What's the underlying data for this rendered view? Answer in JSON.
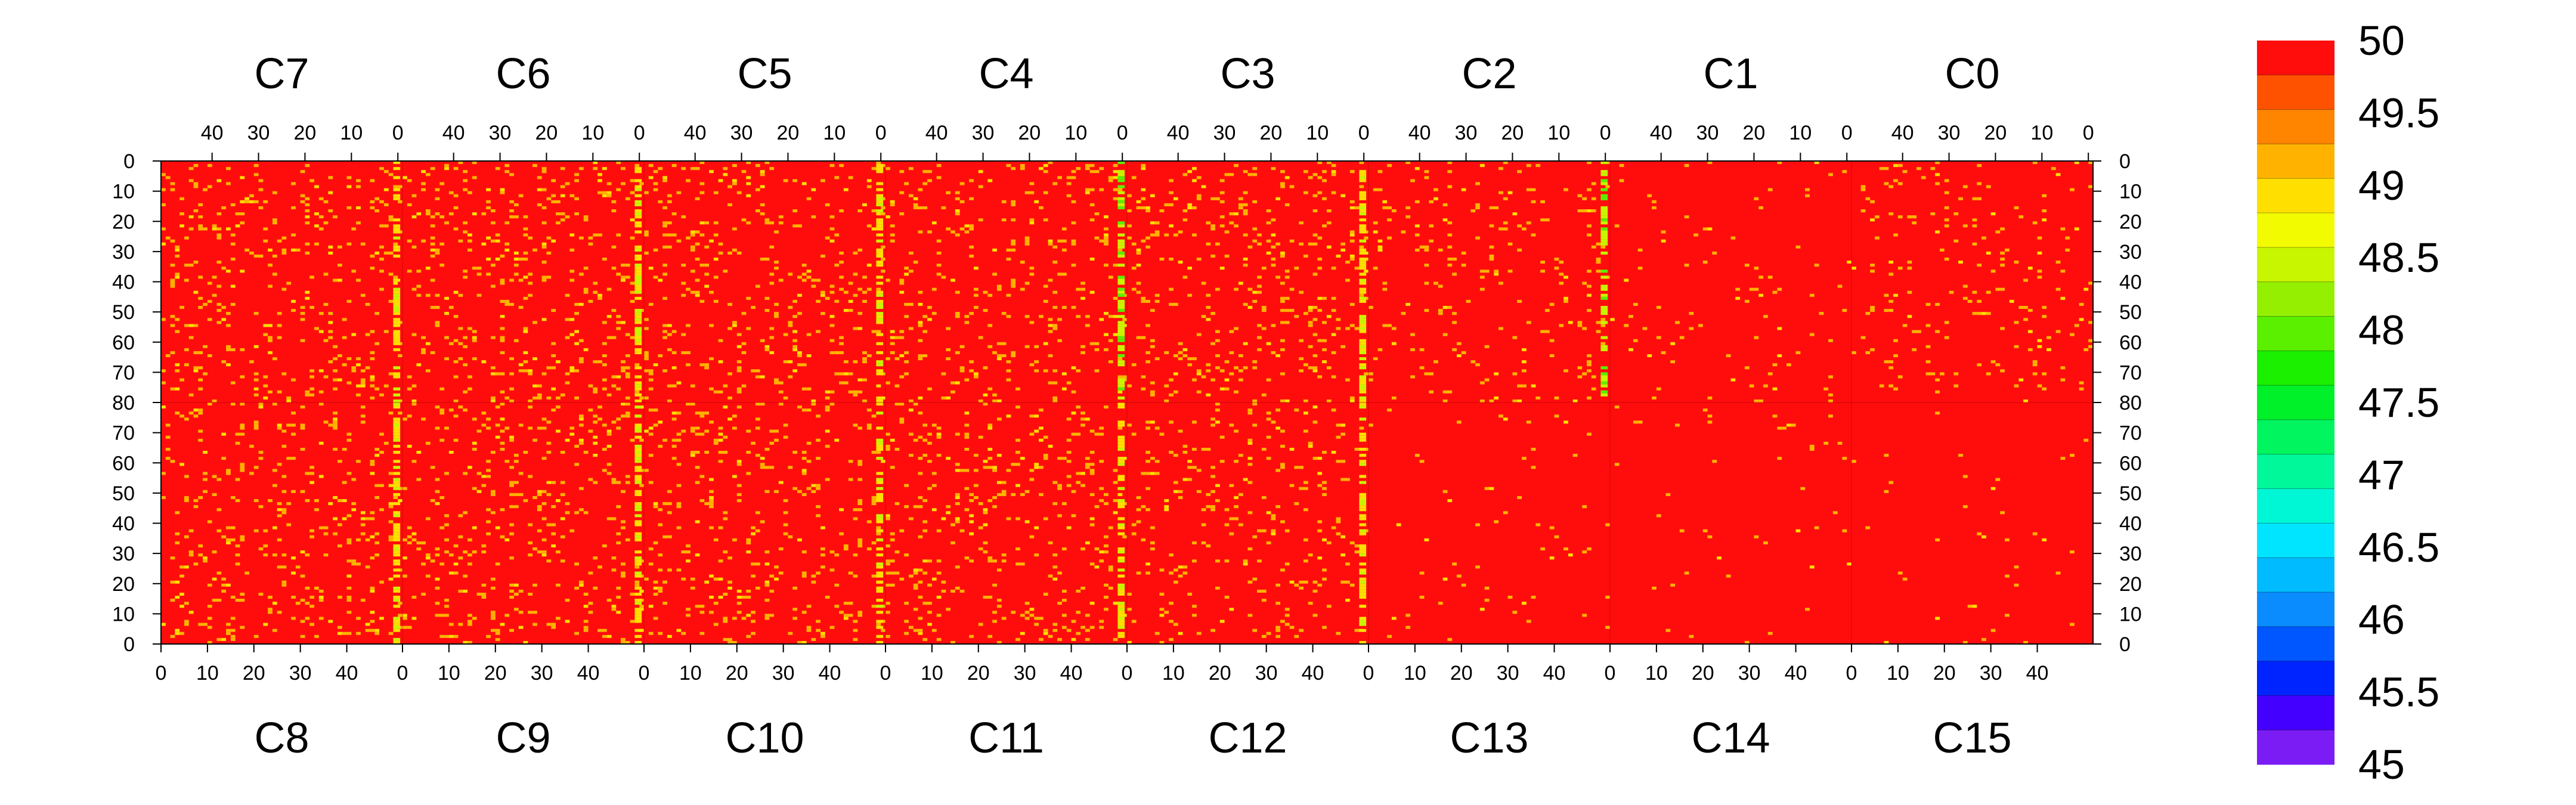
{
  "chart_data": {
    "type": "heatmap",
    "description_units": "cell value",
    "color_scale": {
      "min": 45,
      "max": 50,
      "step": 0.25,
      "tick_labels": [
        "50",
        "49.5",
        "49",
        "48.5",
        "48",
        "47.5",
        "47",
        "46.5",
        "46",
        "45.5",
        "45"
      ],
      "colors": [
        "#7b1cf5",
        "#4400ff",
        "#0024ff",
        "#0057ff",
        "#0a8cff",
        "#00bbff",
        "#00e5ff",
        "#00f7d6",
        "#00f79a",
        "#00f55f",
        "#00f02a",
        "#1af000",
        "#5af000",
        "#94f000",
        "#c8f500",
        "#f2fb00",
        "#ffdf00",
        "#ffb300",
        "#ff8400",
        "#ff5200",
        "#ff0d0d"
      ]
    },
    "background_value": 50,
    "top_chips": [
      "C7",
      "C6",
      "C5",
      "C4",
      "C3",
      "C2",
      "C1",
      "C0"
    ],
    "bottom_chips": [
      "C8",
      "C9",
      "C10",
      "C11",
      "C12",
      "C13",
      "C14",
      "C15"
    ],
    "top_column_ticks": [
      "40",
      "30",
      "20",
      "10",
      "0"
    ],
    "bottom_column_ticks": [
      "0",
      "10",
      "20",
      "30",
      "40"
    ],
    "row_ticks_upper": [
      "0",
      "10",
      "20",
      "30",
      "40",
      "50",
      "60",
      "70",
      "80"
    ],
    "row_ticks_lower": [
      "70",
      "60",
      "50",
      "40",
      "30",
      "20",
      "10",
      "0"
    ],
    "columns_per_chip": 52,
    "rows_per_half": 80,
    "hot_columns": [
      {
        "chip": "C7",
        "col": 1,
        "value": 49.0
      },
      {
        "chip": "C6",
        "col": 1,
        "value": 49.0
      },
      {
        "chip": "C5",
        "col": 1,
        "value": 49.0
      },
      {
        "chip": "C4",
        "col": 1,
        "value": 48.5
      },
      {
        "chip": "C3",
        "col": 1,
        "value": 49.0
      },
      {
        "chip": "C2",
        "col": 1,
        "value": 48.5
      },
      {
        "chip": "C8",
        "col": 50,
        "value": 49.0
      },
      {
        "chip": "C9",
        "col": 50,
        "value": 49.0
      },
      {
        "chip": "C10",
        "col": 50,
        "value": 49.0
      },
      {
        "chip": "C11",
        "col": 50,
        "value": 49.0
      },
      {
        "chip": "C12",
        "col": 50,
        "value": 49.0
      }
    ],
    "chip_pixel_density": {
      "C7": 0.08,
      "C6": 0.08,
      "C5": 0.08,
      "C4": 0.08,
      "C3": 0.08,
      "C2": 0.05,
      "C1": 0.02,
      "C0": 0.04,
      "C8": 0.08,
      "C9": 0.08,
      "C10": 0.08,
      "C11": 0.08,
      "C12": 0.06,
      "C13": 0.015,
      "C14": 0.008,
      "C15": 0.012
    }
  }
}
